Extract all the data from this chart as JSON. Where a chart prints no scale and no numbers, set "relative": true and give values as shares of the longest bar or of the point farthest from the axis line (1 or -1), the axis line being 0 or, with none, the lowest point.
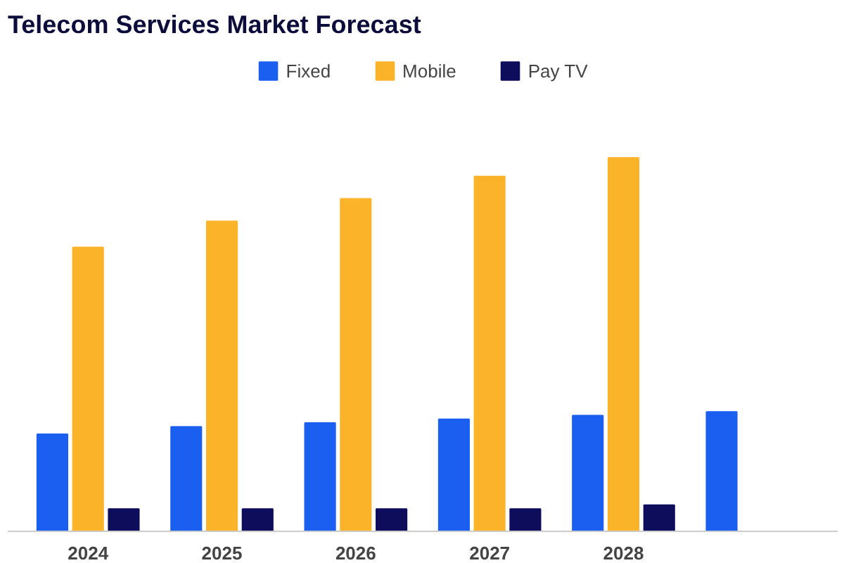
{
  "chart_data": {
    "type": "bar",
    "title": "Telecom Services Market Forecast",
    "relative": true,
    "legend": "top",
    "categories": [
      "2024",
      "2025",
      "2026",
      "2027",
      "2028",
      null
    ],
    "series": [
      {
        "name": "Fixed",
        "color": "#1a5ff0",
        "values": [
          0.26,
          0.28,
          0.29,
          0.3,
          0.31,
          0.32
        ]
      },
      {
        "name": "Mobile",
        "color": "#fbb32a",
        "values": [
          0.76,
          0.83,
          0.89,
          0.95,
          1.0,
          null
        ]
      },
      {
        "name": "Pay TV",
        "color": "#0d0d5c",
        "values": [
          0.06,
          0.06,
          0.06,
          0.06,
          0.07,
          null
        ]
      }
    ]
  }
}
